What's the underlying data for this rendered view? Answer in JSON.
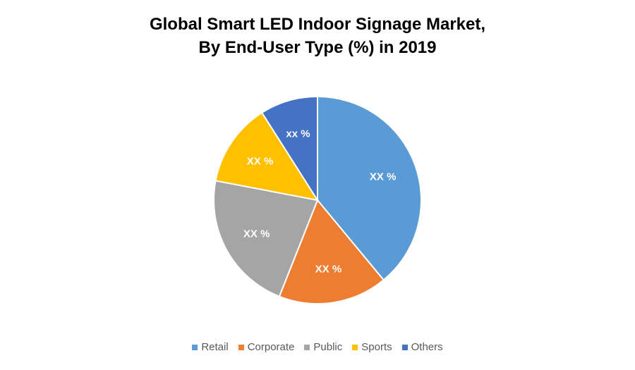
{
  "chart_data": {
    "type": "pie",
    "title_line1": "Global Smart LED Indoor Signage Market,",
    "title_line2": "By End-User Type (%) in 2019",
    "categories": [
      "Retail",
      "Corporate",
      "Public",
      "Sports",
      "Others"
    ],
    "values": [
      39,
      17,
      22,
      13,
      9
    ],
    "data_labels": [
      "XX %",
      "XX %",
      "XX %",
      "XX %",
      "xx %"
    ],
    "colors": [
      "#5B9BD5",
      "#ED7D31",
      "#A5A5A5",
      "#FFC000",
      "#4472C4"
    ],
    "legend_position": "bottom"
  }
}
